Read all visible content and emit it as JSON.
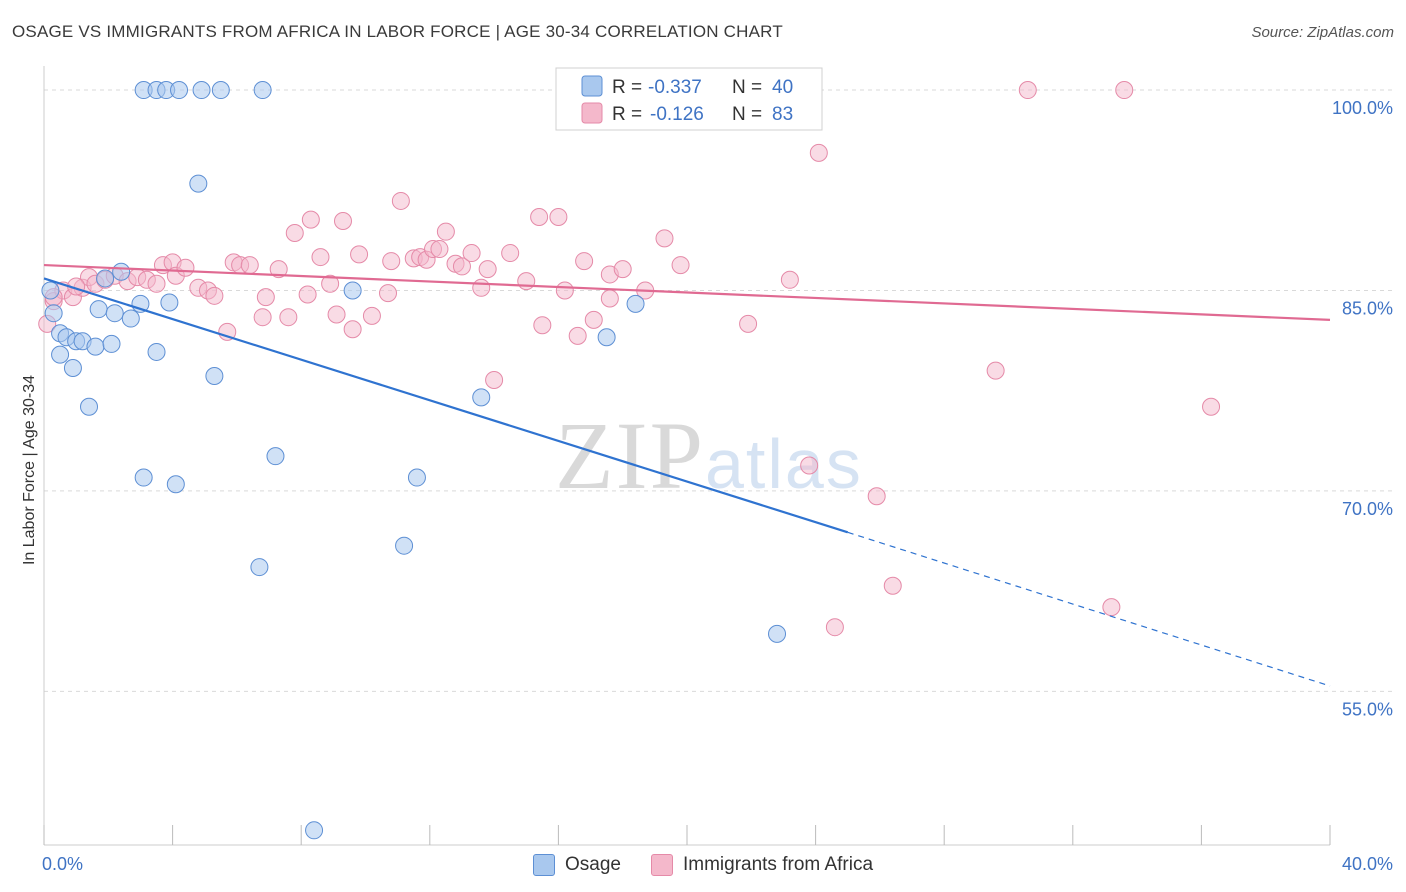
{
  "title": "OSAGE VS IMMIGRANTS FROM AFRICA IN LABOR FORCE | AGE 30-34 CORRELATION CHART",
  "source": "Source: ZipAtlas.com",
  "watermark": {
    "zip": "ZIP",
    "atlas": "atlas"
  },
  "colors": {
    "blue_fill": "#a9c8ee",
    "blue_stroke": "#5d8fd4",
    "blue_line": "#2f73d0",
    "pink_fill": "#f4b8cb",
    "pink_stroke": "#e58aa8",
    "pink_line": "#e06a92",
    "grid": "#d9d9d9",
    "tick_text": "#3f73c4"
  },
  "legend_box": {
    "rows": [
      {
        "r_label": "R =",
        "r_value": "-0.337",
        "n_label": "N =",
        "n_value": "40",
        "series": "blue"
      },
      {
        "r_label": "R =",
        "r_value": "-0.126",
        "n_label": "N =",
        "n_value": "83",
        "series": "pink"
      }
    ]
  },
  "bottom_legend": {
    "osage": "Osage",
    "africa": "Immigrants from Africa"
  },
  "chart_data": {
    "type": "scatter",
    "title": "OSAGE VS IMMIGRANTS FROM AFRICA IN LABOR FORCE | AGE 30-34 CORRELATION CHART",
    "xlabel": "",
    "ylabel": "In Labor Force | Age 30-34",
    "xlim": [
      0,
      40
    ],
    "ylim": [
      43.5,
      101.5
    ],
    "x_tick_labels": [
      "0.0%",
      "40.0%"
    ],
    "y_ticks": [
      55,
      70,
      85,
      100
    ],
    "y_tick_labels": [
      "55.0%",
      "70.0%",
      "85.0%",
      "100.0%"
    ],
    "grid": "horizontal dashed",
    "legend": "top-center",
    "series": [
      {
        "name": "Osage",
        "color": "blue",
        "points": [
          [
            0.2,
            85.0
          ],
          [
            0.3,
            83.3
          ],
          [
            0.5,
            81.8
          ],
          [
            0.5,
            80.2
          ],
          [
            0.7,
            81.5
          ],
          [
            0.9,
            79.2
          ],
          [
            1.0,
            81.2
          ],
          [
            1.2,
            81.2
          ],
          [
            1.4,
            76.3
          ],
          [
            1.6,
            80.8
          ],
          [
            1.7,
            83.6
          ],
          [
            1.9,
            85.9
          ],
          [
            2.1,
            81.0
          ],
          [
            2.2,
            83.3
          ],
          [
            2.4,
            86.4
          ],
          [
            2.7,
            82.9
          ],
          [
            3.0,
            84.0
          ],
          [
            3.1,
            100.0
          ],
          [
            3.1,
            71.0
          ],
          [
            3.5,
            100.0
          ],
          [
            3.8,
            100.0
          ],
          [
            3.5,
            80.4
          ],
          [
            3.9,
            84.1
          ],
          [
            4.1,
            70.5
          ],
          [
            4.2,
            100.0
          ],
          [
            4.8,
            93.0
          ],
          [
            4.9,
            100.0
          ],
          [
            5.3,
            78.6
          ],
          [
            5.5,
            100.0
          ],
          [
            6.7,
            64.3
          ],
          [
            6.8,
            100.0
          ],
          [
            7.2,
            72.6
          ],
          [
            8.4,
            44.6
          ],
          [
            9.6,
            85.0
          ],
          [
            11.2,
            65.9
          ],
          [
            11.6,
            71.0
          ],
          [
            13.6,
            77.0
          ],
          [
            17.5,
            81.5
          ],
          [
            18.4,
            84.0
          ],
          [
            22.8,
            59.3
          ]
        ]
      },
      {
        "name": "Immigrants from Africa",
        "color": "pink",
        "points": [
          [
            0.1,
            82.5
          ],
          [
            0.3,
            84.2
          ],
          [
            0.6,
            85.0
          ],
          [
            0.9,
            84.5
          ],
          [
            1.2,
            85.2
          ],
          [
            1.4,
            86.0
          ],
          [
            1.6,
            85.5
          ],
          [
            1.9,
            85.8
          ],
          [
            2.2,
            86.1
          ],
          [
            2.6,
            85.7
          ],
          [
            2.9,
            86.0
          ],
          [
            3.2,
            85.8
          ],
          [
            3.5,
            85.5
          ],
          [
            3.7,
            86.9
          ],
          [
            4.0,
            87.1
          ],
          [
            4.1,
            86.1
          ],
          [
            4.4,
            86.7
          ],
          [
            4.8,
            85.2
          ],
          [
            5.1,
            85.0
          ],
          [
            5.3,
            84.6
          ],
          [
            5.7,
            81.9
          ],
          [
            5.9,
            87.1
          ],
          [
            6.1,
            86.9
          ],
          [
            6.4,
            86.9
          ],
          [
            6.8,
            83.0
          ],
          [
            6.9,
            84.5
          ],
          [
            7.3,
            86.6
          ],
          [
            7.6,
            83.0
          ],
          [
            7.8,
            89.3
          ],
          [
            8.2,
            84.7
          ],
          [
            8.3,
            90.3
          ],
          [
            8.6,
            87.5
          ],
          [
            8.9,
            85.5
          ],
          [
            9.1,
            83.2
          ],
          [
            9.3,
            90.2
          ],
          [
            9.6,
            82.1
          ],
          [
            9.8,
            87.7
          ],
          [
            10.2,
            83.1
          ],
          [
            10.7,
            84.8
          ],
          [
            10.8,
            87.2
          ],
          [
            11.1,
            91.7
          ],
          [
            11.5,
            87.4
          ],
          [
            11.7,
            87.5
          ],
          [
            11.9,
            87.3
          ],
          [
            12.1,
            88.1
          ],
          [
            12.3,
            88.1
          ],
          [
            12.5,
            89.4
          ],
          [
            12.8,
            87.0
          ],
          [
            13.0,
            86.8
          ],
          [
            13.3,
            87.8
          ],
          [
            13.6,
            85.2
          ],
          [
            13.8,
            86.6
          ],
          [
            14.0,
            78.3
          ],
          [
            14.5,
            87.8
          ],
          [
            15.0,
            85.7
          ],
          [
            15.4,
            90.5
          ],
          [
            15.5,
            82.4
          ],
          [
            16.0,
            90.5
          ],
          [
            16.2,
            85.0
          ],
          [
            16.6,
            81.6
          ],
          [
            16.8,
            87.2
          ],
          [
            17.1,
            82.8
          ],
          [
            17.6,
            84.4
          ],
          [
            17.6,
            86.2
          ],
          [
            18.0,
            86.6
          ],
          [
            18.7,
            85.0
          ],
          [
            19.3,
            88.9
          ],
          [
            19.8,
            86.9
          ],
          [
            21.0,
            100.0
          ],
          [
            21.9,
            82.5
          ],
          [
            23.2,
            85.8
          ],
          [
            23.8,
            71.9
          ],
          [
            24.1,
            95.3
          ],
          [
            24.6,
            59.8
          ],
          [
            25.9,
            69.6
          ],
          [
            26.4,
            62.9
          ],
          [
            29.6,
            79.0
          ],
          [
            30.6,
            100.0
          ],
          [
            33.2,
            61.3
          ],
          [
            33.6,
            100.0
          ],
          [
            36.3,
            76.3
          ],
          [
            0.3,
            84.5
          ],
          [
            1.0,
            85.3
          ]
        ]
      }
    ],
    "trend_lines": [
      {
        "series": "Osage",
        "x": [
          0,
          25
        ],
        "y": [
          85.9,
          66.9
        ],
        "dashed_extension_to_x": 40,
        "dashed_extension_y": 55.4
      },
      {
        "series": "Immigrants from Africa",
        "x": [
          0,
          40
        ],
        "y": [
          86.9,
          82.8
        ]
      }
    ]
  }
}
